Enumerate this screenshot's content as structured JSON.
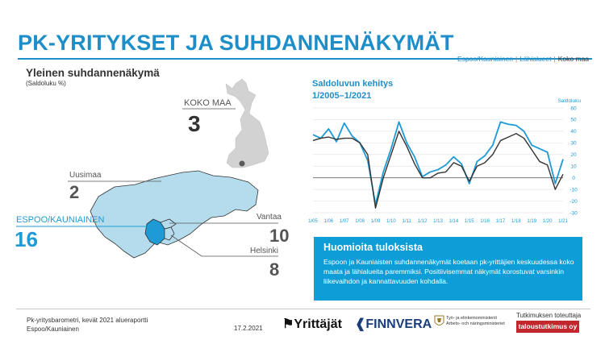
{
  "page": {
    "title": "PK-YRITYKSET JA SUHDANNENÄKYMÄT",
    "breadcrumb": {
      "items": [
        "Espoo/Kauniainen",
        "Lähialueet",
        "Koko maa"
      ],
      "separator": "|",
      "active": "Koko maa"
    }
  },
  "left_panel": {
    "title": "Yleinen suhdannenäkymä",
    "subtitle": "(Saldoluku %)",
    "regions": [
      {
        "name": "KOKO MAA",
        "value": "3"
      },
      {
        "name": "Uusimaa",
        "value": "2"
      },
      {
        "name": "ESPOO/KAUNIAINEN",
        "value": "16"
      },
      {
        "name": "Vantaa",
        "value": "10"
      },
      {
        "name": "Helsinki",
        "value": "8"
      }
    ]
  },
  "chart_data": {
    "type": "line",
    "title": "Saldoluvun kehitys",
    "subtitle": "1/2005–1/2021",
    "ylabel": "Saldoluku",
    "ylim": [
      -30,
      60
    ],
    "yticks": [
      "60",
      "50",
      "40",
      "30",
      "20",
      "10",
      "0",
      "-10",
      "-20",
      "-30"
    ],
    "x_tick_labels": [
      "1/05",
      "1/06",
      "1/07",
      "1/08",
      "1/09",
      "1/10",
      "1/11",
      "1/12",
      "1/13",
      "1/14",
      "1/15",
      "1/16",
      "1/17",
      "1/18",
      "1/19",
      "1/20",
      "1/21"
    ],
    "x": [
      2005.0,
      2005.5,
      2006.0,
      2006.5,
      2007.0,
      2007.5,
      2008.0,
      2008.5,
      2009.0,
      2009.5,
      2010.0,
      2010.5,
      2011.0,
      2011.5,
      2012.0,
      2012.5,
      2013.0,
      2013.5,
      2014.0,
      2014.5,
      2015.0,
      2015.5,
      2016.0,
      2016.5,
      2017.0,
      2017.5,
      2018.0,
      2018.5,
      2019.0,
      2019.5,
      2020.0,
      2020.5,
      2021.0
    ],
    "grid": "horizontal",
    "colors": {
      "series_1": "#1e9ad6",
      "series_2": "#333333"
    },
    "series": [
      {
        "values": [
          37,
          34,
          42,
          31,
          47,
          36,
          30,
          15,
          -23,
          5,
          25,
          48,
          30,
          18,
          1,
          5,
          7,
          11,
          18,
          12,
          -5,
          14,
          19,
          28,
          48,
          46,
          45,
          40,
          28,
          25,
          22,
          -5,
          16
        ]
      },
      {
        "values": [
          32,
          34,
          35,
          33,
          34,
          34,
          30,
          20,
          -26,
          0,
          20,
          40,
          27,
          12,
          0,
          0,
          4,
          5,
          13,
          10,
          -3,
          10,
          13,
          20,
          32,
          35,
          38,
          34,
          24,
          14,
          11,
          -10,
          3
        ]
      }
    ]
  },
  "info_box": {
    "title": "Huomioita tuloksista",
    "body": "Espoon ja Kauniaisten suhdannenäkymät koetaan pk-yrittäjien keskuudessa koko maata ja lähialueita paremmiksi. Positiivisemmat näkymät korostuvat varsinkin liikevaihdon ja kannattavuuden kohdalla."
  },
  "footer": {
    "source_line1": "Pk-yritysbarometri, kevät 2021 alueraportti",
    "source_line2": "Espoo/Kauniainen",
    "date": "17.2.2021",
    "logos": {
      "yrittajat": "Yrittäjät",
      "finnvera": "FINNVERA",
      "ministry_line1": "Työ- ja elinkeinoministeriö",
      "ministry_line2": "Arbets- och näringsministeriet",
      "tutkimus_label": "Tutkimuksen toteuttaja",
      "taloustutkimus": "taloustutkimus oy"
    }
  }
}
